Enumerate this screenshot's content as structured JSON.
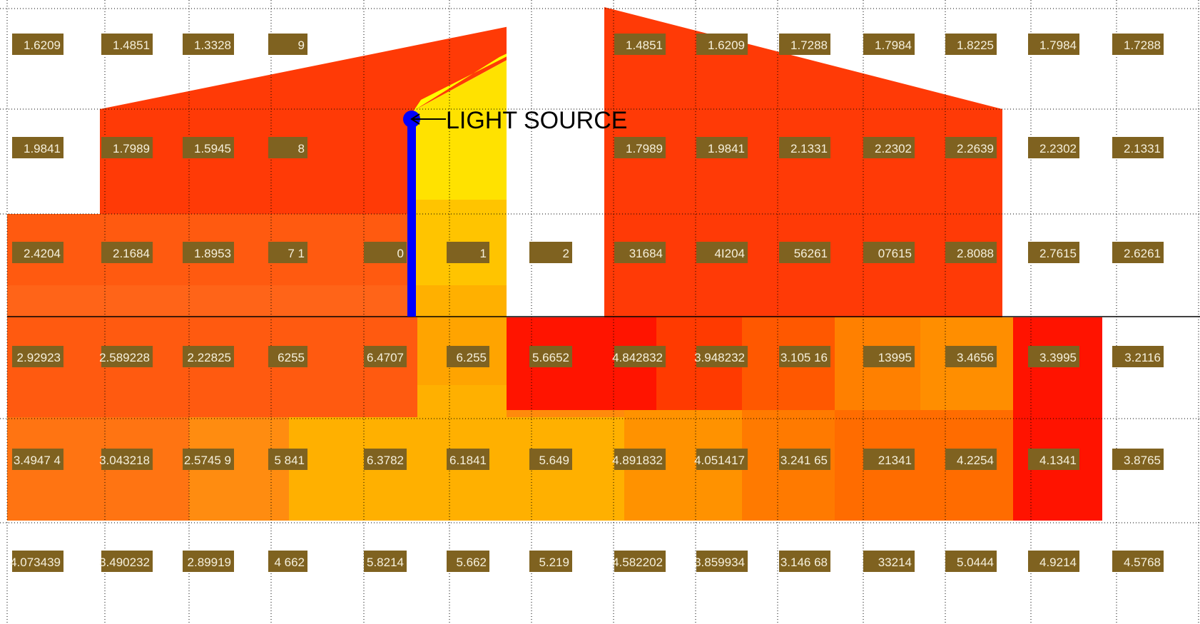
{
  "annotation": {
    "text": "LIGHT SOURCE"
  },
  "colors": {
    "background": "#ffffff",
    "label_fill": "#7f6220",
    "label_text": "#f6f0dc",
    "light_pole": "#0000ff",
    "grid_dots": "#000000",
    "ground_line": "#000000",
    "roof_red": "#ff3a06",
    "bright_red": "#ff1300",
    "orange_red": "#ff5a10",
    "orange": "#ff8a0c",
    "amber": "#ffb000",
    "yellow_orange": "#ffc400",
    "yellow": "#ffe200",
    "bright_yellow": "#ffff00"
  },
  "grid": {
    "rows": [
      [
        "1.6209",
        "1.4851",
        "1.3328",
        "9",
        "",
        "",
        "",
        "1.4851",
        "1.6209",
        "1.7288",
        "1.7984",
        "1.8225",
        "1.7984",
        "1.7288"
      ],
      [
        "1.9841",
        "1.7989",
        "1.5945",
        "8",
        "",
        "",
        "",
        "1.7989",
        "1.9841",
        "2.1331",
        "2.2302",
        "2.2639",
        "2.2302",
        "2.1331"
      ],
      [
        "2.4204",
        "2.1684",
        "1.8953",
        "7 1",
        "0",
        "1",
        "2",
        "31684",
        "4I204",
        "56261",
        "07615",
        "2.8088",
        "2.7615",
        "2.6261"
      ],
      [
        "2.92923",
        "2.589228",
        "2.22825",
        "6255",
        "6.4707",
        "6.255",
        "5.6652",
        "4.842832",
        "3.948232",
        "3.105 16",
        "13995",
        "3.4656",
        "3.3995",
        "3.2116"
      ],
      [
        "3.4947 4",
        "3.043218",
        "2.5745 9",
        "5 841",
        "6.3782",
        "6.1841",
        "5.649",
        "4.891832",
        "4.051417",
        "3.241 65",
        "21341",
        "4.2254",
        "4.1341",
        "3.8765"
      ],
      [
        "4.073439",
        "3.490232",
        "2.89919",
        "4 662",
        "5.8214",
        "5.662",
        "5.219",
        "4.582202",
        "3.859934",
        "3.146 68",
        "33214",
        "5.0444",
        "4.9214",
        "4.5768"
      ]
    ]
  }
}
